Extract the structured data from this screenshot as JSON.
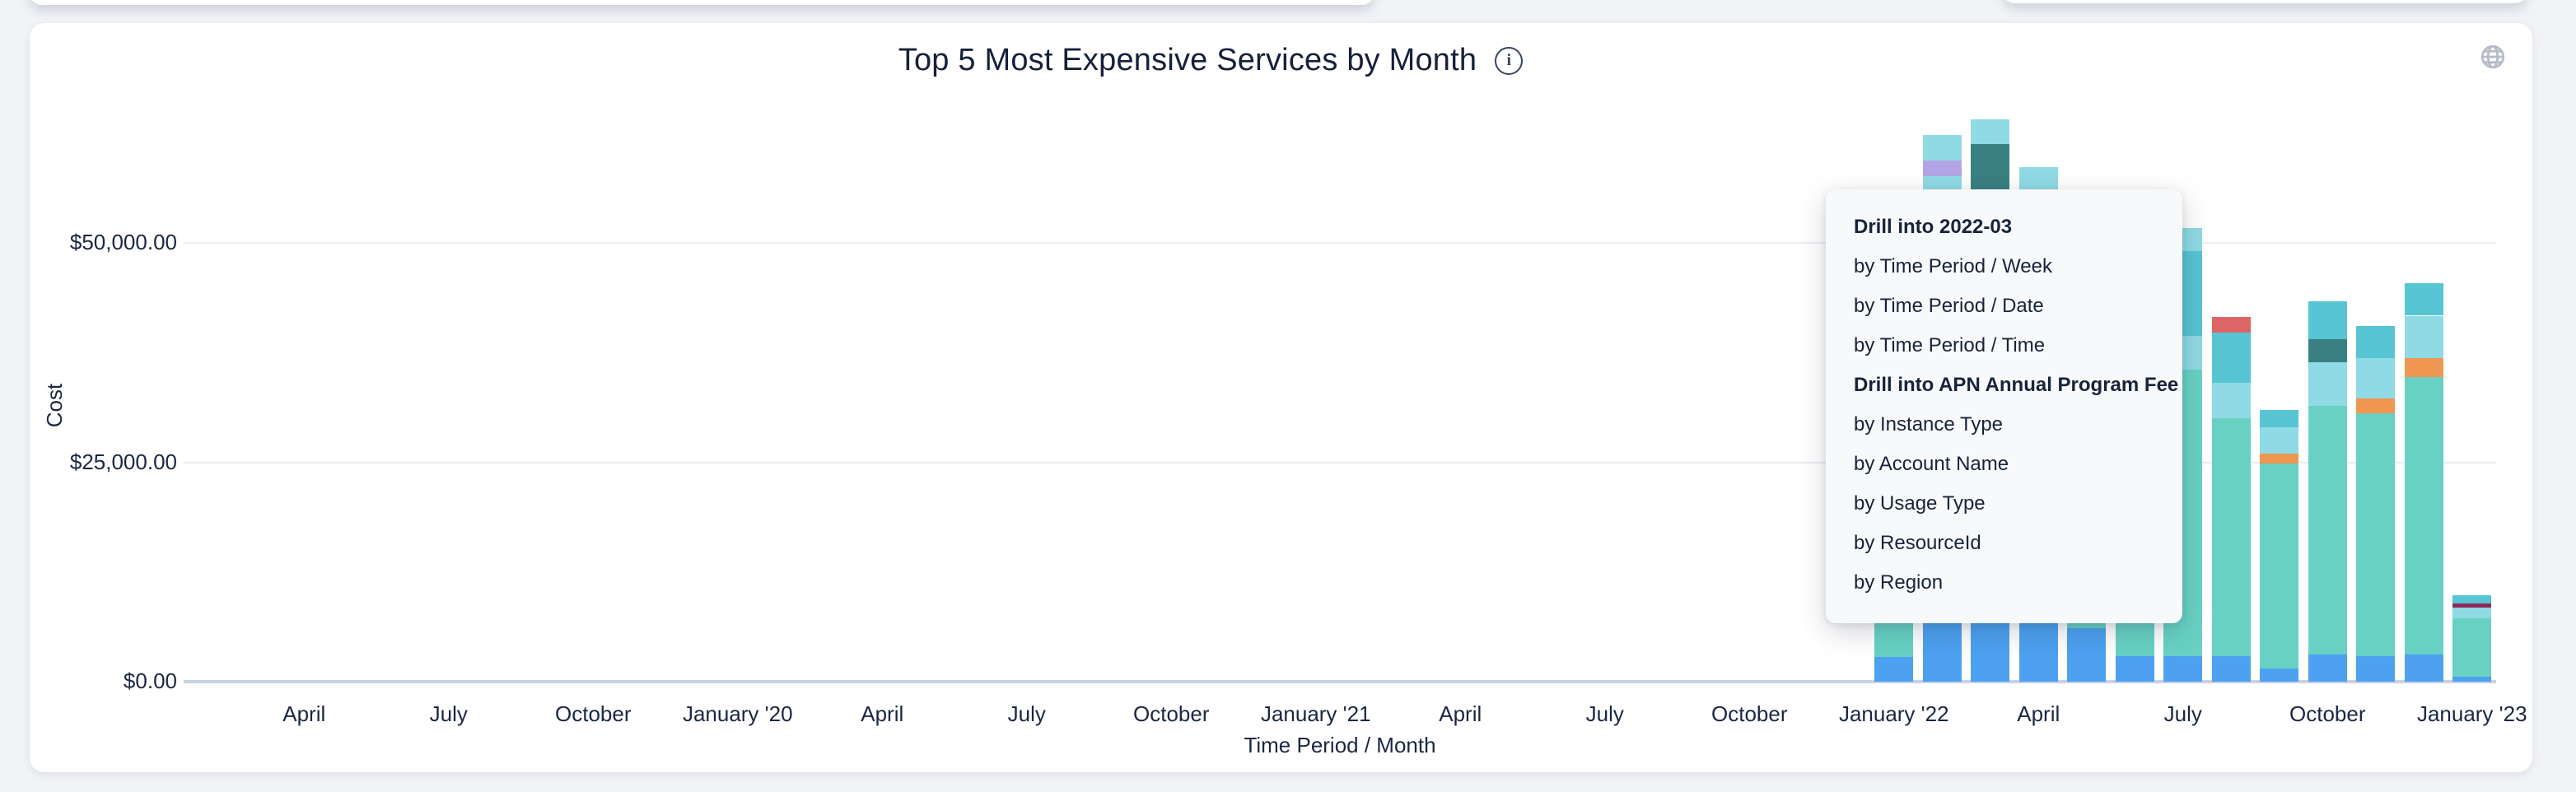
{
  "page": {
    "background_color": "#f1f3f7"
  },
  "card": {
    "title": "Top 5 Most Expensive Services by Month",
    "info_icon": "i",
    "globe_icon": "globe"
  },
  "context_menu": {
    "items": [
      {
        "label": "Drill into 2022-03",
        "header": true
      },
      {
        "label": "by Time Period / Week",
        "header": false
      },
      {
        "label": "by Time Period / Date",
        "header": false
      },
      {
        "label": "by Time Period / Time",
        "header": false
      },
      {
        "label": "Drill into APN Annual Program Fee",
        "header": true
      },
      {
        "label": "by Instance Type",
        "header": false
      },
      {
        "label": "by Account Name",
        "header": false
      },
      {
        "label": "by Usage Type",
        "header": false
      },
      {
        "label": "by ResourceId",
        "header": false
      },
      {
        "label": "by Region",
        "header": false
      }
    ]
  },
  "chart_data": {
    "type": "bar",
    "subtype": "stacked",
    "title": "Top 5 Most Expensive Services by Month",
    "xlabel": "Time Period / Month",
    "ylabel": "Cost",
    "ylim": [
      0,
      66000
    ],
    "grid": "horizontal",
    "legend": "none",
    "axis_start_month": "2019-02",
    "axis_month_count": 48,
    "y_ticks": [
      {
        "value": 0,
        "label": "$0.00"
      },
      {
        "value": 25000,
        "label": "$25,000.00"
      },
      {
        "value": 50000,
        "label": "$50,000.00"
      }
    ],
    "x_ticks": [
      {
        "month": "2019-04",
        "label": "April"
      },
      {
        "month": "2019-07",
        "label": "July"
      },
      {
        "month": "2019-10",
        "label": "October"
      },
      {
        "month": "2020-01",
        "label": "January '20"
      },
      {
        "month": "2020-04",
        "label": "April"
      },
      {
        "month": "2020-07",
        "label": "July"
      },
      {
        "month": "2020-10",
        "label": "October"
      },
      {
        "month": "2021-01",
        "label": "January '21"
      },
      {
        "month": "2021-04",
        "label": "April"
      },
      {
        "month": "2021-07",
        "label": "July"
      },
      {
        "month": "2021-10",
        "label": "October"
      },
      {
        "month": "2022-01",
        "label": "January '22"
      },
      {
        "month": "2022-04",
        "label": "April"
      },
      {
        "month": "2022-07",
        "label": "July"
      },
      {
        "month": "2022-10",
        "label": "October"
      },
      {
        "month": "2023-01",
        "label": "January '23"
      }
    ],
    "colors": {
      "blue": "#4da1f0",
      "teal": "#68d1c4",
      "light-cyan": "#8fdae4",
      "cyan": "#57c5d3",
      "orange": "#ef9750",
      "red": "#dd6565",
      "dark-teal": "#3a7f82",
      "purple": "#b3a5e5",
      "maroon": "#8f2b5c"
    },
    "bars": [
      {
        "month": "2022-01",
        "segments": [
          {
            "color": "blue",
            "value": 2800
          },
          {
            "color": "teal",
            "value": 9200
          }
        ]
      },
      {
        "month": "2022-02",
        "segments": [
          {
            "color": "blue",
            "value": 7500
          },
          {
            "color": "teal",
            "value": 34000
          },
          {
            "color": "light-cyan",
            "value": 16100
          },
          {
            "color": "purple",
            "value": 1800
          },
          {
            "color": "light-cyan",
            "value": 2900
          }
        ]
      },
      {
        "month": "2022-03",
        "segments": [
          {
            "color": "blue",
            "value": 7300
          },
          {
            "color": "teal",
            "value": 38400
          },
          {
            "color": "dark-teal",
            "value": 15600
          },
          {
            "color": "light-cyan",
            "value": 2800
          }
        ]
      },
      {
        "month": "2022-04",
        "segments": [
          {
            "color": "blue",
            "value": 7100
          },
          {
            "color": "teal",
            "value": 44200
          },
          {
            "color": "light-cyan",
            "value": 7300
          }
        ]
      },
      {
        "month": "2022-05",
        "segments": [
          {
            "color": "blue",
            "value": 6100
          },
          {
            "color": "teal",
            "value": 23900
          }
        ]
      },
      {
        "month": "2022-06",
        "segments": [
          {
            "color": "blue",
            "value": 2900
          },
          {
            "color": "teal",
            "value": 32100
          }
        ]
      },
      {
        "month": "2022-07",
        "segments": [
          {
            "color": "blue",
            "value": 2900
          },
          {
            "color": "teal",
            "value": 32700
          },
          {
            "color": "light-cyan",
            "value": 3800
          },
          {
            "color": "cyan",
            "value": 9700
          },
          {
            "color": "light-cyan",
            "value": 2600
          }
        ]
      },
      {
        "month": "2022-08",
        "segments": [
          {
            "color": "blue",
            "value": 2900
          },
          {
            "color": "teal",
            "value": 27100
          },
          {
            "color": "light-cyan",
            "value": 4100
          },
          {
            "color": "cyan",
            "value": 5700
          },
          {
            "color": "red",
            "value": 1800
          }
        ]
      },
      {
        "month": "2022-09",
        "segments": [
          {
            "color": "blue",
            "value": 1500
          },
          {
            "color": "teal",
            "value": 23400
          },
          {
            "color": "orange",
            "value": 1100
          },
          {
            "color": "light-cyan",
            "value": 3000
          },
          {
            "color": "cyan",
            "value": 2000
          }
        ]
      },
      {
        "month": "2022-10",
        "segments": [
          {
            "color": "blue",
            "value": 3100
          },
          {
            "color": "teal",
            "value": 28300
          },
          {
            "color": "light-cyan",
            "value": 5000
          },
          {
            "color": "dark-teal",
            "value": 2600
          },
          {
            "color": "cyan",
            "value": 4300
          }
        ]
      },
      {
        "month": "2022-11",
        "segments": [
          {
            "color": "blue",
            "value": 2900
          },
          {
            "color": "teal",
            "value": 27700
          },
          {
            "color": "orange",
            "value": 1700
          },
          {
            "color": "light-cyan",
            "value": 4600
          },
          {
            "color": "cyan",
            "value": 3600
          }
        ]
      },
      {
        "month": "2022-12",
        "segments": [
          {
            "color": "blue",
            "value": 3100
          },
          {
            "color": "teal",
            "value": 31600
          },
          {
            "color": "orange",
            "value": 2200
          },
          {
            "color": "light-cyan",
            "value": 4800
          },
          {
            "color": "cyan",
            "value": 3700
          }
        ]
      },
      {
        "month": "2023-01",
        "segments": [
          {
            "color": "blue",
            "value": 560
          },
          {
            "color": "teal",
            "value": 6700
          },
          {
            "color": "light-cyan",
            "value": 1200
          },
          {
            "color": "maroon",
            "value": 470
          },
          {
            "color": "cyan",
            "value": 950
          }
        ]
      }
    ]
  }
}
